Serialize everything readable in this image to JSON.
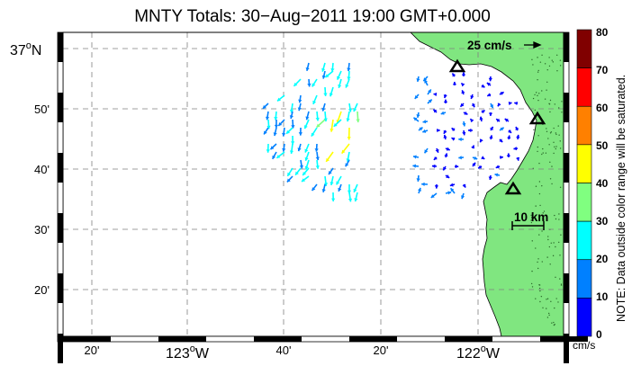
{
  "title": "MNTY Totals: 30−Aug−2011 19:00 GMT+0.000",
  "lat_labels": [
    {
      "deg": "37",
      "min": "",
      "hemi": "N"
    },
    {
      "deg": "",
      "min": "50'",
      "hemi": ""
    },
    {
      "deg": "",
      "min": "40'",
      "hemi": ""
    },
    {
      "deg": "",
      "min": "30'",
      "hemi": ""
    },
    {
      "deg": "",
      "min": "20'",
      "hemi": ""
    }
  ],
  "lon_labels": [
    {
      "text": "20'"
    },
    {
      "deg": "123",
      "hemi": "W"
    },
    {
      "text": "40'"
    },
    {
      "text": "20'"
    },
    {
      "deg": "122",
      "hemi": "W"
    }
  ],
  "reference_vector_label": "25 cm/s",
  "scale_bar_label": "10 km",
  "colorbar": {
    "ticks": [
      "80",
      "70",
      "60",
      "50",
      "40",
      "30",
      "20",
      "10",
      "0"
    ],
    "units": "cm/s",
    "note": "NOTE: Data outside color range will be saturated.",
    "colors": [
      "#800000",
      "#ff0000",
      "#ff8000",
      "#ffff00",
      "#80ff80",
      "#00ffff",
      "#0080ff",
      "#0000ff"
    ]
  },
  "colors": {
    "land": "#80e680",
    "grid": "#808080",
    "station": "#000000"
  }
}
